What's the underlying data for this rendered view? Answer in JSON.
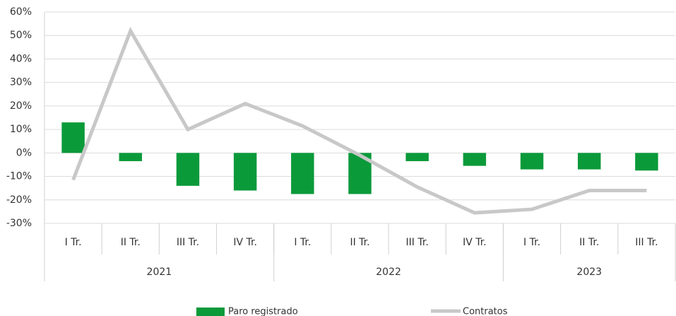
{
  "chart_data": {
    "type": "bar_line",
    "groups": [
      {
        "label": "2021",
        "categories": [
          "I Tr.",
          "II Tr.",
          "III Tr.",
          "IV Tr."
        ]
      },
      {
        "label": "2022",
        "categories": [
          "I Tr.",
          "II Tr.",
          "III Tr.",
          "IV Tr."
        ]
      },
      {
        "label": "2023",
        "categories": [
          "I Tr.",
          "II Tr.",
          "III Tr."
        ]
      }
    ],
    "series": [
      {
        "name": "Paro registrado",
        "type": "bar",
        "color": "#0b9a3a",
        "values": [
          13,
          -3.5,
          -14,
          -16,
          -17.5,
          -17.5,
          -3.5,
          -5.5,
          -7,
          -7,
          -7.5
        ]
      },
      {
        "name": "Contratos",
        "type": "line",
        "color": "#c8c8c8",
        "values": [
          -11.5,
          52,
          10,
          21,
          11.5,
          -1,
          -14.5,
          -25.5,
          -24,
          -16,
          -16
        ]
      }
    ],
    "ylim": [
      -30,
      60
    ],
    "yticks": [
      {
        "value": -30,
        "label": "-30%"
      },
      {
        "value": -20,
        "label": "-20%"
      },
      {
        "value": -10,
        "label": "-10%"
      },
      {
        "value": 0,
        "label": "0%"
      },
      {
        "value": 10,
        "label": "10%"
      },
      {
        "value": 20,
        "label": "20%"
      },
      {
        "value": 30,
        "label": "30%"
      },
      {
        "value": 40,
        "label": "40%"
      },
      {
        "value": 50,
        "label": "50%"
      },
      {
        "value": 60,
        "label": "60%"
      }
    ],
    "grid": true,
    "legend": "bottom"
  }
}
